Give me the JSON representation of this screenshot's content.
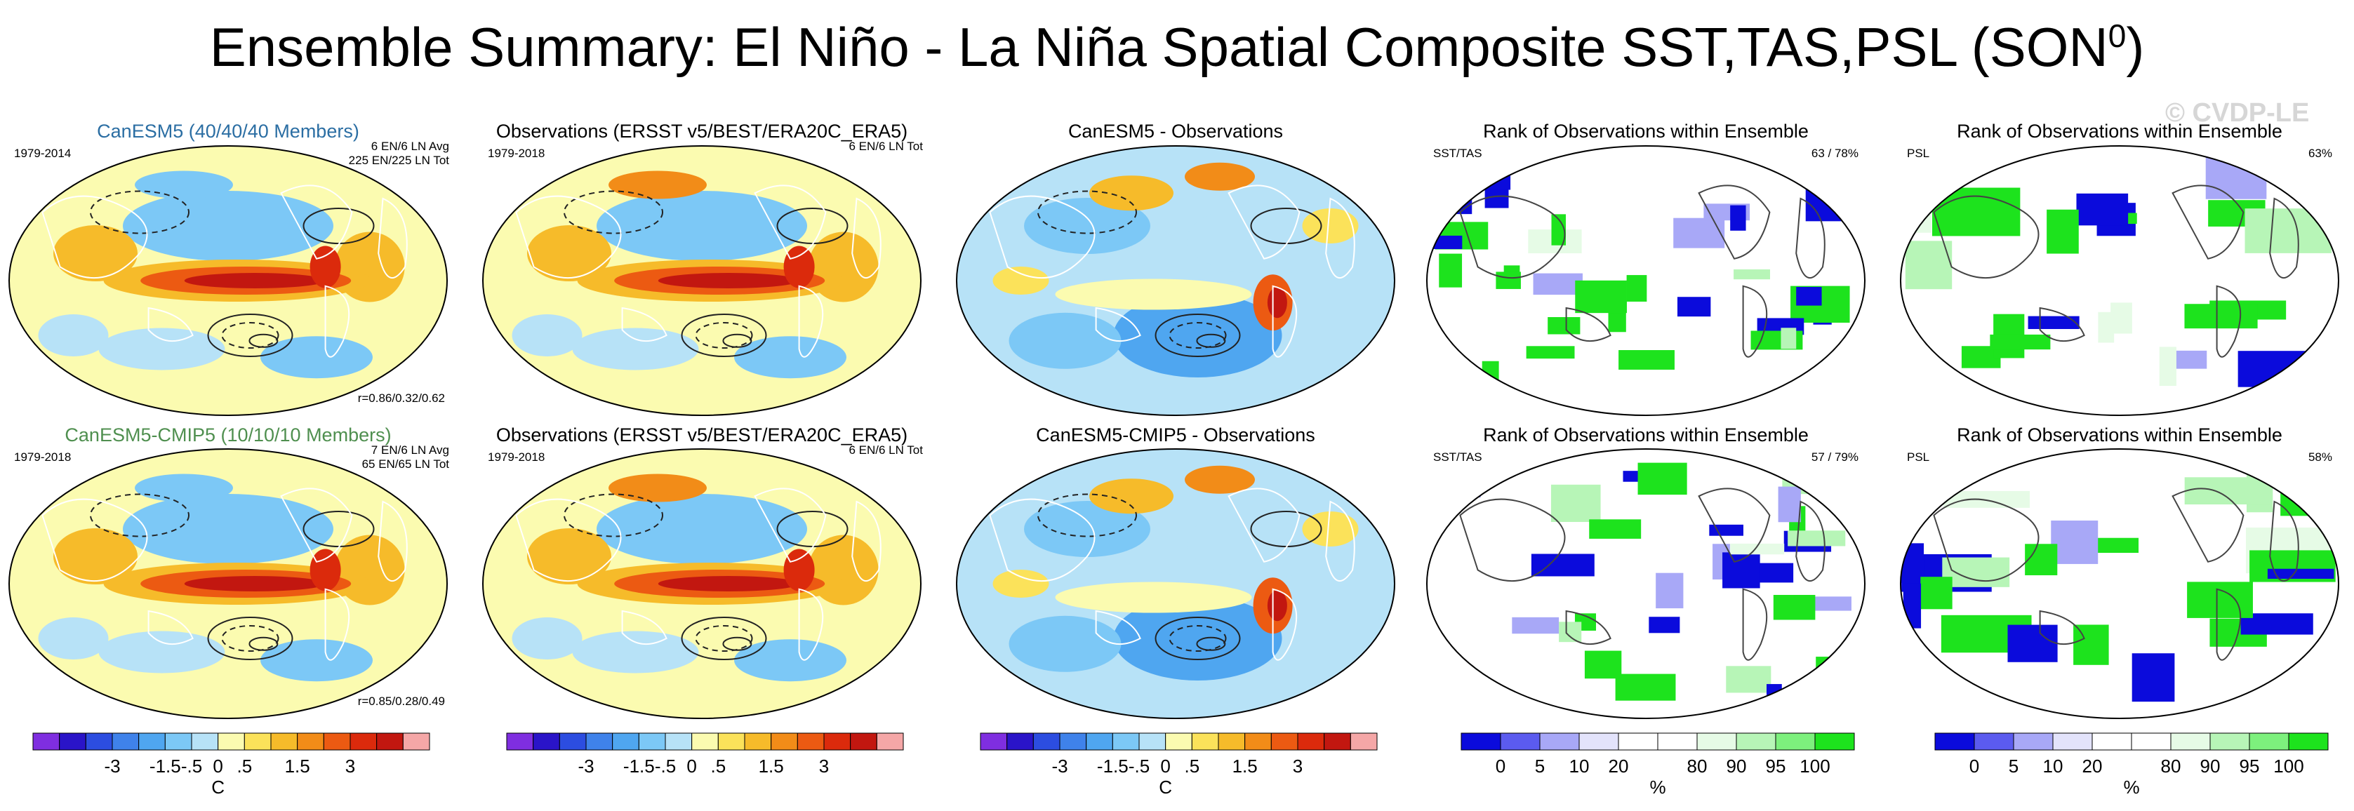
{
  "title": "Ensemble Summary: El Niño - La Niña Spatial Composite SST,TAS,PSL (SON",
  "title_sup": "0",
  "title_close": ")",
  "watermark": "© CVDP-LE",
  "rows": [
    {
      "panels": [
        {
          "title": "CanESM5 (40/40/40 Members)",
          "period": "1979-2014",
          "top_right": [
            "6 EN/6 LN Avg",
            "225 EN/225 LN Tot"
          ],
          "bottom_right": "r=0.86/0.32/0.62",
          "kind": "model"
        },
        {
          "title": "Observations (ERSST v5/BEST/ERA20C_ERA5)",
          "period": "1979-2018",
          "top_right": [
            "6 EN/6 LN Tot"
          ],
          "kind": "obs"
        },
        {
          "title": "CanESM5 - Observations",
          "kind": "diff"
        },
        {
          "title": "Rank of Observations within Ensemble",
          "left_label": "SST/TAS",
          "right_label": "63 /  78%",
          "kind": "rank"
        },
        {
          "title": "Rank of Observations within Ensemble",
          "left_label": "PSL",
          "right_label": "63%",
          "kind": "rankpsl"
        }
      ]
    },
    {
      "panels": [
        {
          "title": "CanESM5-CMIP5 (10/10/10 Members)",
          "period": "1979-2018",
          "top_right": [
            "7 EN/6 LN Avg",
            "65 EN/65 LN Tot"
          ],
          "bottom_right": "r=0.85/0.28/0.49",
          "kind": "model"
        },
        {
          "title": "Observations (ERSST v5/BEST/ERA20C_ERA5)",
          "period": "1979-2018",
          "top_right": [
            "6 EN/6 LN Tot"
          ],
          "kind": "obs"
        },
        {
          "title": "CanESM5-CMIP5 - Observations",
          "kind": "diff"
        },
        {
          "title": "Rank of Observations within Ensemble",
          "left_label": "SST/TAS",
          "right_label": "57 /  79%",
          "kind": "rank"
        },
        {
          "title": "Rank of Observations within Ensemble",
          "left_label": "PSL",
          "right_label": "58%",
          "kind": "rankpsl"
        }
      ]
    }
  ],
  "colorbars": [
    {
      "ticks": [
        "-3",
        "-1.5",
        "-.5",
        "0",
        ".5",
        "1.5",
        "3"
      ],
      "unit": "C"
    },
    {
      "ticks": [
        "-3",
        "-1.5",
        "-.5",
        "0",
        ".5",
        "1.5",
        "3"
      ],
      "unit": ""
    },
    {
      "ticks": [
        "-3",
        "-1.5",
        "-.5",
        "0",
        ".5",
        "1.5",
        "3"
      ],
      "unit": "C"
    },
    {
      "ticks": [
        "0",
        "5",
        "10",
        "20",
        "80",
        "90",
        "95",
        "100"
      ],
      "unit": "%"
    },
    {
      "ticks": [
        "0",
        "5",
        "10",
        "20",
        "80",
        "90",
        "95",
        "100"
      ],
      "unit": "%"
    }
  ],
  "colors": {
    "temp_scale": [
      "#7f2ee0",
      "#2a14c8",
      "#2c4de0",
      "#3f82ea",
      "#4fa6f0",
      "#7cc8f6",
      "#b7e2f7",
      "#fbfbb0",
      "#fbe25a",
      "#f6bb2a",
      "#f28c18",
      "#ec5a12",
      "#db2a0c",
      "#c21710",
      "#f5a7a7"
    ],
    "rank_scale": [
      "#0b0bdc",
      "#5b5bef",
      "#a8a8f7",
      "#e3e3fb",
      "#ffffff",
      "#ffffff",
      "#e6fbe6",
      "#b7f5b7",
      "#7df07d",
      "#1de31d"
    ]
  }
}
